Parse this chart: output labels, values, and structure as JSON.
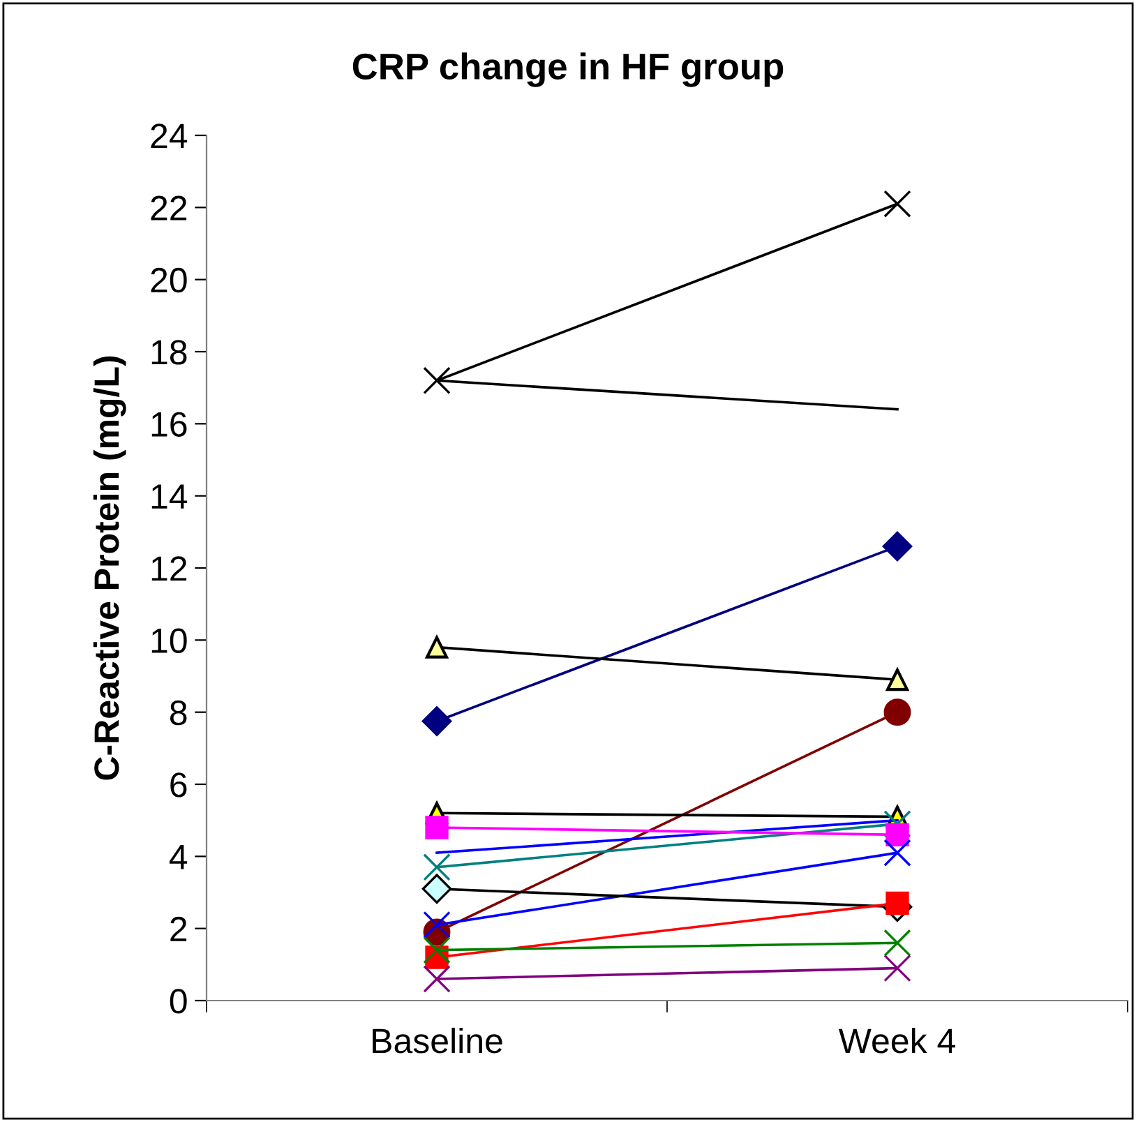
{
  "chart_data": {
    "type": "line",
    "title": "CRP change in HF group",
    "ylabel": "C-Reactive Protein (mg/L)",
    "categories": [
      "Baseline",
      "Week 4"
    ],
    "ylim": [
      0,
      24
    ],
    "yticks": [
      0,
      2,
      4,
      6,
      8,
      10,
      12,
      14,
      16,
      18,
      20,
      22,
      24
    ],
    "grid": false,
    "legend": false,
    "series": [
      {
        "color": "#000000",
        "marker": "cross",
        "values": [
          17.2,
          22.1
        ]
      },
      {
        "color": "#000000",
        "marker": "none",
        "values": [
          17.2,
          16.4
        ]
      },
      {
        "color": "#000080",
        "marker": "diamond",
        "values": [
          7.75,
          12.6
        ]
      },
      {
        "color": "#000000",
        "marker": "triangle",
        "colors": [
          "#ffff99",
          "#ffff99"
        ],
        "values": [
          9.8,
          8.9
        ]
      },
      {
        "color": "#800000",
        "marker": "circle",
        "values": [
          1.9,
          8.0
        ]
      },
      {
        "color": "#000000",
        "marker": "triangle",
        "colors": [
          "#ffff00",
          "#ffff00"
        ],
        "values": [
          5.2,
          5.1
        ]
      },
      {
        "color": "#0000ff",
        "marker": "none",
        "values": [
          4.1,
          5.0
        ]
      },
      {
        "color": "#008080",
        "marker": "cross",
        "values": [
          3.7,
          4.9
        ]
      },
      {
        "color": "#ff00ff",
        "marker": "square",
        "values": [
          4.8,
          4.6
        ]
      },
      {
        "color": "#0000ff",
        "marker": "cross",
        "values": [
          2.1,
          4.1
        ]
      },
      {
        "color": "#000000",
        "marker": "diamond",
        "colors": [
          "#ccffff",
          "#ccffff"
        ],
        "values": [
          3.1,
          2.6
        ]
      },
      {
        "color": "#ff0000",
        "marker": "square",
        "values": [
          1.2,
          2.7
        ]
      },
      {
        "color": "#008000",
        "marker": "cross",
        "values": [
          1.4,
          1.6
        ]
      },
      {
        "color": "#800080",
        "marker": "cross",
        "values": [
          0.6,
          0.9
        ]
      }
    ]
  }
}
